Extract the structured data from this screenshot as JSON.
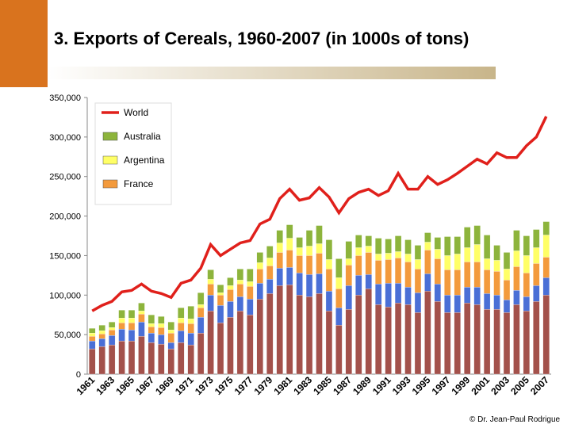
{
  "chart_data": {
    "type": "bar",
    "stacked": true,
    "title": "3. Exports of Cereals, 1960-2007 (in 1000s of tons)",
    "credit": "© Dr. Jean-Paul Rodrigue",
    "categories": [
      "1961",
      null,
      "1963",
      null,
      "1965",
      null,
      "1967",
      null,
      "1969",
      null,
      "1971",
      null,
      "1973",
      null,
      "1975",
      null,
      "1977",
      null,
      "1979",
      null,
      "1981",
      null,
      "1983",
      null,
      "1985",
      null,
      "1987",
      null,
      "1989",
      null,
      "1991",
      null,
      "1993",
      null,
      "1995",
      null,
      "1997",
      null,
      "1999",
      null,
      "2001",
      null,
      "2003",
      null,
      "2005",
      null,
      "2007"
    ],
    "ylim": [
      0,
      350000
    ],
    "yticks": [
      0,
      {
        "value": 50000,
        "label": "50,000"
      },
      {
        "value": 100000,
        "label": "100,000"
      },
      {
        "value": 150000,
        "label": "150,000"
      },
      {
        "value": 200000,
        "label": "200,000"
      },
      {
        "value": 250000,
        "label": "250,000"
      },
      {
        "value": 300000,
        "label": "300,000"
      },
      {
        "value": 350000,
        "label": "350,000"
      }
    ],
    "grid": false,
    "legend": "upper left",
    "series": [
      {
        "color": "#a3514b",
        "values": [
          32000,
          35000,
          37000,
          42000,
          42000,
          48000,
          40000,
          38000,
          32000,
          40000,
          37000,
          52000,
          80000,
          65000,
          72000,
          80000,
          75000,
          95000,
          102000,
          112000,
          113000,
          100000,
          98000,
          102000,
          80000,
          62000,
          82000,
          100000,
          108000,
          88000,
          85000,
          90000,
          88000,
          78000,
          105000,
          92000,
          78000,
          78000,
          90000,
          88000,
          82000,
          82000,
          78000,
          88000,
          80000,
          92000,
          100000
        ]
      },
      {
        "color": "#4a6fd6",
        "values": [
          10000,
          10000,
          12000,
          15000,
          14000,
          18000,
          12000,
          12000,
          8000,
          15000,
          15000,
          20000,
          20000,
          22000,
          20000,
          18000,
          20000,
          20000,
          18000,
          22000,
          22000,
          28000,
          28000,
          25000,
          25000,
          22000,
          30000,
          25000,
          18000,
          26000,
          30000,
          25000,
          22000,
          25000,
          22000,
          22000,
          22000,
          22000,
          20000,
          22000,
          20000,
          18000,
          16000,
          18000,
          18000,
          20000,
          22000
        ]
      },
      {
        "name": "France",
        "color": "#f39a3c",
        "values": [
          6000,
          6000,
          7000,
          8000,
          9000,
          10000,
          8000,
          9000,
          12000,
          10000,
          12000,
          12000,
          14000,
          13000,
          15000,
          16000,
          16000,
          18000,
          17000,
          20000,
          22000,
          22000,
          24000,
          26000,
          28000,
          24000,
          26000,
          25000,
          28000,
          30000,
          30000,
          32000,
          32000,
          30000,
          30000,
          32000,
          32000,
          32000,
          32000,
          32000,
          30000,
          30000,
          25000,
          30000,
          30000,
          28000,
          26000
        ]
      },
      {
        "name": "Argentina",
        "color": "#ffff66",
        "values": [
          4000,
          4000,
          3000,
          6000,
          6000,
          4000,
          4000,
          5000,
          4000,
          6000,
          6000,
          4000,
          6000,
          3000,
          5000,
          5000,
          6000,
          8000,
          10000,
          12000,
          15000,
          10000,
          12000,
          12000,
          12000,
          14000,
          8000,
          10000,
          8000,
          8000,
          8000,
          8000,
          10000,
          12000,
          10000,
          12000,
          18000,
          20000,
          18000,
          22000,
          14000,
          14000,
          14000,
          20000,
          22000,
          20000,
          28000
        ]
      },
      {
        "name": "Australia",
        "color": "#8db43c",
        "values": [
          6000,
          7000,
          7000,
          10000,
          10000,
          10000,
          11000,
          9000,
          10000,
          13000,
          16000,
          15000,
          12000,
          10000,
          10000,
          14000,
          16000,
          13000,
          15000,
          16000,
          17000,
          13000,
          20000,
          23000,
          25000,
          24000,
          22000,
          16000,
          13000,
          20000,
          18000,
          20000,
          18000,
          18000,
          12000,
          15000,
          24000,
          22000,
          26000,
          24000,
          30000,
          19000,
          21000,
          26000,
          25000,
          23000,
          17000
        ]
      },
      {
        "name": "World",
        "type": "line",
        "color": "#e0201b",
        "values": [
          80000,
          87000,
          92000,
          104000,
          106000,
          114000,
          105000,
          102000,
          97000,
          115000,
          119000,
          134000,
          164000,
          150000,
          158000,
          166000,
          169000,
          190000,
          196000,
          222000,
          234000,
          220000,
          223000,
          236000,
          224000,
          204000,
          222000,
          230000,
          234000,
          226000,
          232000,
          254000,
          234000,
          234000,
          250000,
          240000,
          246000,
          254000,
          263000,
          272000,
          266000,
          280000,
          274000,
          274000,
          289000,
          300000,
          326000
        ]
      }
    ]
  }
}
